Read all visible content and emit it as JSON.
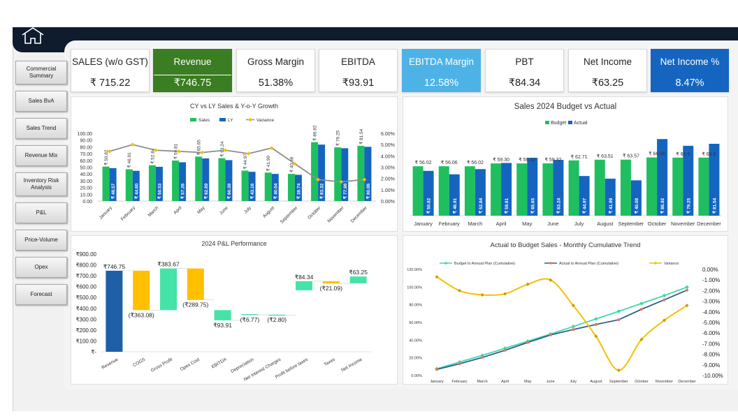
{
  "nav": [
    "Commercial Summary",
    "Sales BvA",
    "Sales Trend",
    "Revenue Mix",
    "Inventory Risk Analysis",
    "P&L",
    "Price-Volume",
    "Opex",
    "Forecast"
  ],
  "kpis": [
    {
      "label": "SALES (w/o GST)",
      "value": "₹ 715.22",
      "bg": "#ffffff",
      "color": "#222222"
    },
    {
      "label": "Revenue",
      "value": "₹746.75",
      "bg": "#3a7d22",
      "color": "#ffffff",
      "split": true
    },
    {
      "label": "Gross Margin",
      "value": "51.38%",
      "bg": "#ffffff",
      "color": "#222222"
    },
    {
      "label": "EBITDA",
      "value": "₹93.91",
      "bg": "#ffffff",
      "color": "#222222"
    },
    {
      "label": "EBITDA Margin",
      "value": "12.58%",
      "bg": "#4db3e6",
      "color": "#ffffff"
    },
    {
      "label": "PBT",
      "value": "₹84.34",
      "bg": "#ffffff",
      "color": "#222222"
    },
    {
      "label": "Net Income",
      "value": "₹63.25",
      "bg": "#ffffff",
      "color": "#222222"
    },
    {
      "label": "Net Income %",
      "value": "8.47%",
      "bg": "#1565c0",
      "color": "#ffffff"
    }
  ],
  "chart_data": [
    {
      "type": "bar",
      "title": "CY vs LY Sales & Y-o-Y Growth",
      "categories": [
        "January",
        "February",
        "March",
        "April",
        "May",
        "June",
        "July",
        "August",
        "September",
        "October",
        "November",
        "December"
      ],
      "series": [
        {
          "name": "Sales",
          "color": "#1fbf5f",
          "values": [
            50.82,
            46.91,
            52.84,
            59.81,
            65.65,
            63.24,
            44.97,
            41.99,
            40.08,
            86.92,
            79.25,
            81.54
          ],
          "labels": [
            "₹ 50.82",
            "₹ 46.91",
            "₹ 52.84",
            "₹ 59.81",
            "₹ 65.65",
            "₹ 63.24",
            "₹ 44.97",
            "₹ 41.99",
            "₹ 40.08",
            "₹ 86.92",
            "₹ 79.25",
            "₹ 81.54"
          ]
        },
        {
          "name": "LY",
          "color": "#1565c0",
          "values": [
            48.57,
            44.6,
            50.53,
            57.26,
            62.89,
            60.38,
            43.16,
            40.04,
            38.74,
            83.32,
            77.98,
            80.06
          ],
          "labels": [
            "₹ 48.57",
            "₹ 44.60",
            "₹ 50.53",
            "₹ 57.26",
            "₹ 62.89",
            "₹ 60.38",
            "₹ 43.16",
            "₹ 40.04",
            "₹ 38.74",
            "₹ 83.32",
            "₹ 77.98",
            "₹ 80.06"
          ]
        },
        {
          "name": "Variance",
          "color": "#8c8c8c",
          "values": [
            4.4,
            5.0,
            4.5,
            4.4,
            4.3,
            4.5,
            4.2,
            4.7,
            3.3,
            1.9,
            1.7,
            1.9
          ]
        }
      ],
      "yticks": [
        "100.00",
        "90.00",
        "80.00",
        "70.00",
        "60.00",
        "50.00",
        "40.00",
        "30.00",
        "20.00",
        "10.00",
        "0.00"
      ],
      "y2ticks": [
        "6.00%",
        "5.00%",
        "4.00%",
        "3.00%",
        "2.00%",
        "1.00%",
        "0.00%"
      ],
      "ylim": [
        0,
        100
      ],
      "y2lim": [
        0,
        6
      ]
    },
    {
      "type": "bar",
      "title": "Sales 2024 Budget vs Actual",
      "categories": [
        "January",
        "February",
        "March",
        "April",
        "May",
        "June",
        "July",
        "August",
        "September",
        "October",
        "November",
        "December"
      ],
      "series": [
        {
          "name": "Budget",
          "color": "#1fbf5f",
          "values": [
            56.02,
            56.06,
            56.02,
            59.3,
            59.32,
            59.32,
            62.71,
            63.51,
            63.57,
            66.06,
            65.9,
            65.9
          ],
          "labels": [
            "₹ 56.02",
            "₹ 56.06",
            "₹ 56.02",
            "₹ 59.30",
            "₹ 59.32",
            "₹ 59.32",
            "₹ 62.71",
            "₹ 63.51",
            "₹ 63.57",
            "₹ 66.06",
            "₹ 65.9",
            "₹ 65.9"
          ]
        },
        {
          "name": "Actual",
          "color": "#1565c0",
          "values": [
            50.82,
            46.91,
            52.84,
            59.81,
            65.65,
            63.24,
            44.97,
            41.99,
            40.08,
            86.92,
            79.25,
            81.54
          ],
          "labels": [
            "₹ 50.82",
            "₹ 46.91",
            "₹ 52.84",
            "₹ 59.81",
            "₹ 65.65",
            "₹ 63.24",
            "₹ 44.97",
            "₹ 41.99",
            "₹ 40.08",
            "₹ 86.92",
            "₹ 79.25",
            "₹ 81.54"
          ]
        }
      ],
      "ylim": [
        0,
        95
      ]
    },
    {
      "type": "waterfall",
      "title": "2024 P&L Performance",
      "categories": [
        "Revenue",
        "COGS",
        "Gross Profit",
        "Opex Cost",
        "EBITDA",
        "Depreciation",
        "Net Interest Charges",
        "Profit before taxes",
        "Taxes",
        "Net Income"
      ],
      "steps": [
        {
          "from": 0,
          "to": 746.75,
          "color": "#1f5fa8",
          "label": "₹746.75"
        },
        {
          "from": 746.75,
          "to": 383.67,
          "color": "#ffc000",
          "label": "(₹363.08)"
        },
        {
          "from": 383.67,
          "to": 767.34,
          "color": "#46e3a8",
          "label": "₹383.67"
        },
        {
          "from": 767.34,
          "to": 477.59,
          "color": "#ffc000",
          "label": "(₹289.75)"
        },
        {
          "from": 383.67,
          "to": 289.76,
          "color": "#46e3a8",
          "label": "₹93.91"
        },
        {
          "from": 347.0,
          "to": 340.23,
          "color": "#46e3a8",
          "label": "(₹6.77)"
        },
        {
          "from": 342.0,
          "to": 339.2,
          "color": "#46e3a8",
          "label": "(₹2.80)"
        },
        {
          "from": 566.0,
          "to": 650.34,
          "color": "#46e3a8",
          "label": "₹84.34"
        },
        {
          "from": 650.34,
          "to": 629.25,
          "color": "#ffc000",
          "label": "(₹21.09)"
        },
        {
          "from": 630.0,
          "to": 693.25,
          "color": "#46e3a8",
          "label": "₹63.25"
        }
      ],
      "yticks": [
        "₹900.00",
        "₹800.00",
        "₹700.00",
        "₹600.00",
        "₹500.00",
        "₹400.00",
        "₹300.00",
        "₹200.00",
        "₹100.00",
        "₹-"
      ],
      "ylim": [
        0,
        900
      ]
    },
    {
      "type": "line",
      "title": "Actual to Budget Sales - Monthly Cumulative Trend",
      "categories": [
        "January",
        "February",
        "March",
        "April",
        "May",
        "June",
        "July",
        "August",
        "September",
        "October",
        "November",
        "December"
      ],
      "series": [
        {
          "name": "Budget to Annual Plan (Cumulative)",
          "color": "#3dd9a8",
          "values": [
            7.6,
            15.2,
            22.8,
            30.8,
            38.8,
            46.9,
            55.4,
            64.0,
            72.6,
            81.5,
            90.4,
            100.0
          ]
        },
        {
          "name": "Actual to Annual Plan (Cumulative)",
          "color": "#2f5f8f",
          "values": [
            6.9,
            13.2,
            20.4,
            28.5,
            37.4,
            45.9,
            52.0,
            57.7,
            63.1,
            74.9,
            85.6,
            96.6
          ]
        },
        {
          "name": "Variance",
          "color": "#f5c000",
          "values": [
            -0.7,
            -2.0,
            -2.4,
            -2.3,
            -1.4,
            -1.0,
            -3.4,
            -6.3,
            -9.5,
            -6.6,
            -4.8,
            -3.4
          ]
        }
      ],
      "yticks": [
        "120.00%",
        "100.00%",
        "80.00%",
        "60.00%",
        "40.00%",
        "20.00%",
        "0.00%"
      ],
      "y2ticks": [
        "0.00%",
        "-1.00%",
        "-2.00%",
        "-3.00%",
        "-4.00%",
        "-5.00%",
        "-6.00%",
        "-7.00%",
        "-8.00%",
        "-9.00%",
        "-10.00%"
      ],
      "ylim": [
        0,
        120
      ],
      "y2lim": [
        -10,
        0
      ]
    }
  ]
}
